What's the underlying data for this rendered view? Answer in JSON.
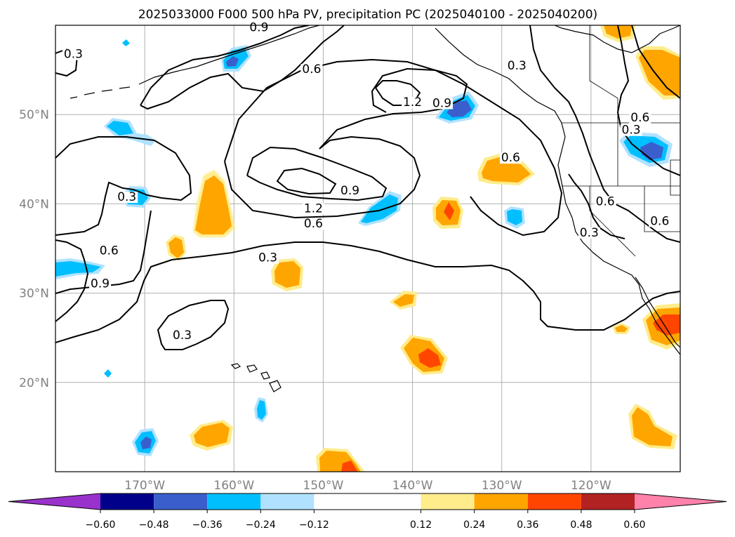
{
  "chart_data": {
    "type": "heatmap",
    "title": "2025033000 F000 500 hPa PV, precipitation PC (2025040100 - 2025040200)",
    "projection": "map",
    "xlim": [
      -180,
      -110
    ],
    "ylim": [
      10,
      60
    ],
    "x_ticks": [
      {
        "value": -170,
        "label": "170°W"
      },
      {
        "value": -160,
        "label": "160°W"
      },
      {
        "value": -150,
        "label": "150°W"
      },
      {
        "value": -140,
        "label": "140°W"
      },
      {
        "value": -130,
        "label": "130°W"
      },
      {
        "value": -120,
        "label": "120°W"
      }
    ],
    "y_ticks": [
      {
        "value": 20,
        "label": "20°N"
      },
      {
        "value": 30,
        "label": "30°N"
      },
      {
        "value": 40,
        "label": "40°N"
      },
      {
        "value": 50,
        "label": "50°N"
      }
    ],
    "grid": true,
    "colorbar": {
      "orientation": "horizontal",
      "extend": "both",
      "levels": [
        -0.72,
        -0.6,
        -0.48,
        -0.36,
        -0.24,
        -0.12,
        0.12,
        0.24,
        0.36,
        0.48,
        0.6,
        0.72
      ],
      "tick_labels": [
        "−0.60",
        "−0.48",
        "−0.36",
        "−0.24",
        "−0.12",
        "0.12",
        "0.24",
        "0.36",
        "0.48",
        "0.60"
      ],
      "colors": [
        "#9932cc",
        "#00008b",
        "#3a5fcd",
        "#00bfff",
        "#b0e2ff",
        "#ffffff",
        "#ffec8b",
        "#ffa500",
        "#ff4500",
        "#b22222",
        "#ff82ab"
      ]
    },
    "contour_labels": [
      {
        "text": "0.3",
        "lon": -178.0,
        "lat": 56.5
      },
      {
        "text": "0.9",
        "lon": -157.2,
        "lat": 59.5
      },
      {
        "text": "0.6",
        "lon": -151.3,
        "lat": 54.8
      },
      {
        "text": "1.2",
        "lon": -140.0,
        "lat": 51.1
      },
      {
        "text": "0.9",
        "lon": -136.7,
        "lat": 51.0
      },
      {
        "text": "0.3",
        "lon": -128.3,
        "lat": 55.2
      },
      {
        "text": "0.6",
        "lon": -129.0,
        "lat": 44.9
      },
      {
        "text": "0.9",
        "lon": -147.0,
        "lat": 41.2
      },
      {
        "text": "1.2",
        "lon": -151.1,
        "lat": 39.2
      },
      {
        "text": "0.6",
        "lon": -151.1,
        "lat": 37.5
      },
      {
        "text": "0.3",
        "lon": -172.0,
        "lat": 40.5
      },
      {
        "text": "0.6",
        "lon": -174.0,
        "lat": 34.5
      },
      {
        "text": "0.9",
        "lon": -175.0,
        "lat": 30.8
      },
      {
        "text": "0.3",
        "lon": -156.2,
        "lat": 33.7
      },
      {
        "text": "0.3",
        "lon": -165.8,
        "lat": 25.0
      },
      {
        "text": "0.6",
        "lon": -114.5,
        "lat": 49.4
      },
      {
        "text": "0.3",
        "lon": -115.5,
        "lat": 48.0
      },
      {
        "text": "0.6",
        "lon": -118.4,
        "lat": 40.0
      },
      {
        "text": "0.6",
        "lon": -112.3,
        "lat": 37.8
      },
      {
        "text": "0.3",
        "lon": -120.2,
        "lat": 36.5
      }
    ]
  }
}
